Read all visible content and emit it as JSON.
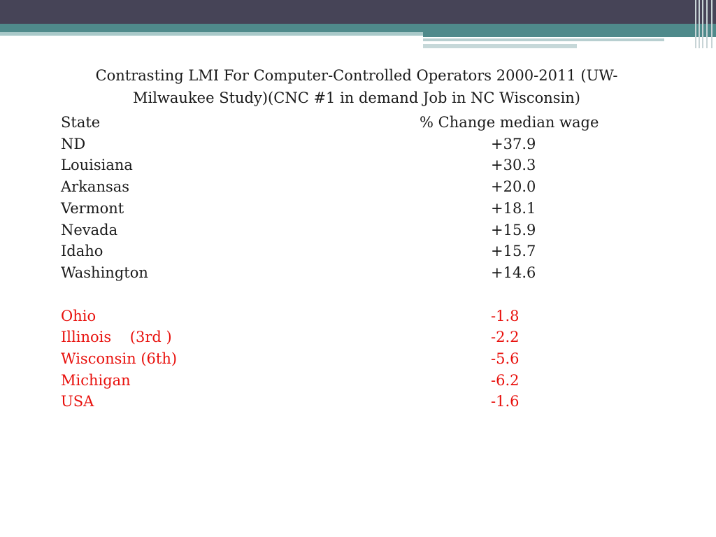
{
  "title": "Contrasting LMI For Computer-Controlled Operators 2000-2011 (UW-Milwaukee Study)(CNC #1 in demand Job in NC Wisconsin)",
  "table": {
    "headers": {
      "state": "State",
      "change": "% Change median wage"
    },
    "positive_rows": [
      {
        "state": "ND",
        "change": "+37.9"
      },
      {
        "state": "Louisiana",
        "change": "+30.3"
      },
      {
        "state": "Arkansas",
        "change": "+20.0"
      },
      {
        "state": "Vermont",
        "change": "+18.1"
      },
      {
        "state": "Nevada",
        "change": "+15.9"
      },
      {
        "state": "Idaho",
        "change": "+15.7"
      },
      {
        "state": "Washington",
        "change": "+14.6"
      }
    ],
    "negative_rows": [
      {
        "state": "Ohio",
        "change": "-1.8"
      },
      {
        "state": "Illinois    (3rd )",
        "change": "-2.2"
      },
      {
        "state": "Wisconsin (6th)",
        "change": "-5.6"
      },
      {
        "state": "Michigan",
        "change": "-6.2"
      },
      {
        "state": "USA",
        "change": "-1.6"
      }
    ]
  },
  "colors": {
    "negative_text": "#e8100c",
    "header_dark": "#464457",
    "header_teal": "#4f8a8b"
  }
}
